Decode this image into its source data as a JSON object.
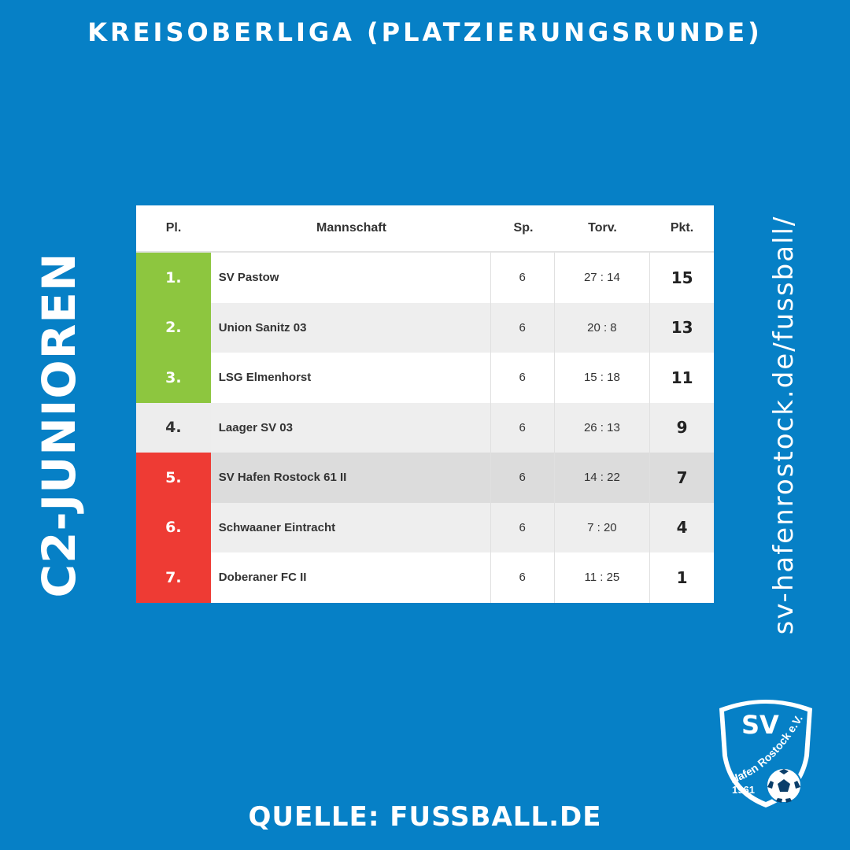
{
  "title": "KREISOBERLIGA (PLATZIERUNGSRUNDE)",
  "side_label": "C2-JUNIOREN",
  "website": "sv-hafenrostock.de/fussball/",
  "source": "QUELLE: FUSSBALL.DE",
  "table": {
    "headers": {
      "pl": "Pl.",
      "team": "Mannschaft",
      "sp": "Sp.",
      "torv": "Torv.",
      "pkt": "Pkt."
    },
    "rows": [
      {
        "pl": "1.",
        "team": "SV Pastow",
        "sp": "6",
        "torv": "27 : 14",
        "pkt": "15"
      },
      {
        "pl": "2.",
        "team": "Union Sanitz 03",
        "sp": "6",
        "torv": "20 : 8",
        "pkt": "13"
      },
      {
        "pl": "3.",
        "team": "LSG Elmenhorst",
        "sp": "6",
        "torv": "15 : 18",
        "pkt": "11"
      },
      {
        "pl": "4.",
        "team": "Laager SV 03",
        "sp": "6",
        "torv": "26 : 13",
        "pkt": "9"
      },
      {
        "pl": "5.",
        "team": "SV Hafen Rostock 61 II",
        "sp": "6",
        "torv": "14 : 22",
        "pkt": "7"
      },
      {
        "pl": "6.",
        "team": "Schwaaner Eintracht",
        "sp": "6",
        "torv": "7 : 20",
        "pkt": "4"
      },
      {
        "pl": "7.",
        "team": "Doberaner FC II",
        "sp": "6",
        "torv": "11 : 25",
        "pkt": "1"
      }
    ]
  },
  "logo": {
    "top": "SV",
    "arc": "Hafen Rostock e.V.",
    "year": "1961"
  },
  "colors": {
    "background": "#0680c6",
    "promotion": "#8dc63f",
    "relegation": "#ee3b34"
  }
}
